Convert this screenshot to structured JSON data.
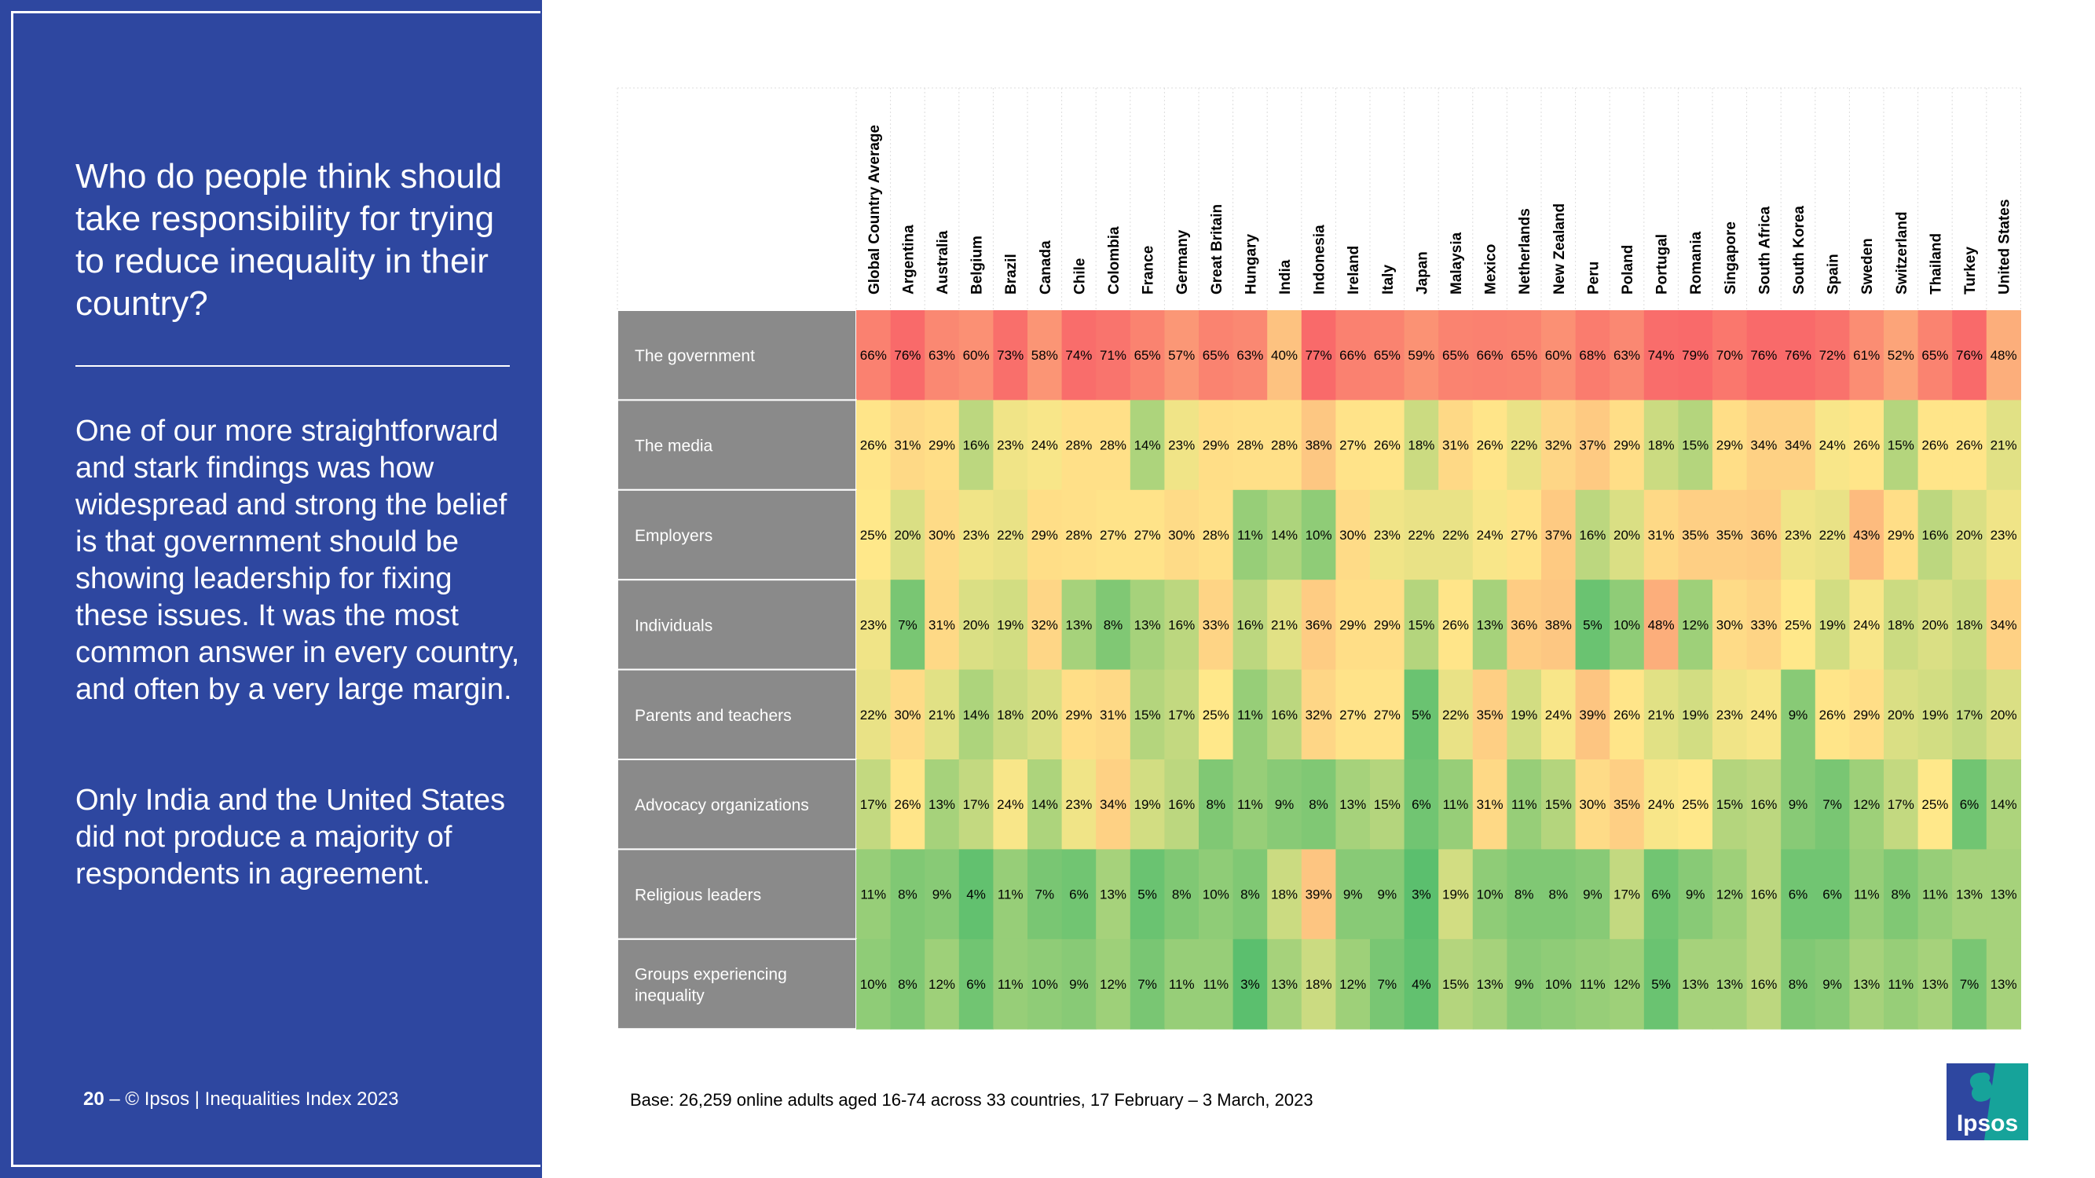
{
  "sidebar": {
    "question": "Who do people think should take responsibility for trying to reduce inequality in their country?",
    "paragraph1": "One of our more straightforward and stark findings was how widespread and strong the belief is that government should be showing leadership for fixing these issues. It was the most common answer in every country, and often by a very large margin.",
    "paragraph2": "Only India and the United States did not produce a majority of respondents in agreement.",
    "page_number": "20",
    "page_separator": " – ",
    "footer_text": "© Ipsos | Inequalities Index 2023"
  },
  "base_note": "Base: 26,259 online adults aged 16-74 across 33 countries, 17 February – 3 March, 2023",
  "logo": {
    "text": "Ipsos"
  },
  "colors": {
    "panel_blue": "#2e47a0",
    "label_gray": "#8a8a8a",
    "scale_low": "#5bbf6e",
    "scale_mid": "#ffe88a",
    "scale_high": "#f96a6a",
    "logo_teal": "#16a39a",
    "logo_blue": "#2e47a0"
  },
  "chart_data": {
    "type": "heatmap",
    "value_format": "percent",
    "columns": [
      "Global Country Average",
      "Argentina",
      "Australia",
      "Belgium",
      "Brazil",
      "Canada",
      "Chile",
      "Colombia",
      "France",
      "Germany",
      "Great Britain",
      "Hungary",
      "India",
      "Indonesia",
      "Ireland",
      "Italy",
      "Japan",
      "Malaysia",
      "Mexico",
      "Netherlands",
      "New Zealand",
      "Peru",
      "Poland",
      "Portugal",
      "Romania",
      "Singapore",
      "South Africa",
      "South Korea",
      "Spain",
      "Sweden",
      "Switzerland",
      "Thailand",
      "Turkey",
      "United States"
    ],
    "rows": [
      {
        "label": "The government",
        "values": [
          66,
          76,
          63,
          60,
          73,
          58,
          74,
          71,
          65,
          57,
          65,
          63,
          40,
          77,
          66,
          65,
          59,
          65,
          66,
          65,
          60,
          68,
          63,
          74,
          79,
          70,
          76,
          76,
          72,
          61,
          52,
          65,
          76,
          48
        ]
      },
      {
        "label": "The media",
        "values": [
          26,
          31,
          29,
          16,
          23,
          24,
          28,
          28,
          14,
          23,
          29,
          28,
          28,
          38,
          27,
          26,
          18,
          31,
          26,
          22,
          32,
          37,
          29,
          18,
          15,
          29,
          34,
          34,
          24,
          26,
          15,
          26,
          26,
          21
        ]
      },
      {
        "label": "Employers",
        "values": [
          25,
          20,
          30,
          23,
          22,
          29,
          28,
          27,
          27,
          30,
          28,
          11,
          14,
          10,
          30,
          23,
          22,
          22,
          24,
          27,
          37,
          16,
          20,
          31,
          35,
          35,
          36,
          23,
          22,
          43,
          29,
          16,
          20,
          23
        ]
      },
      {
        "label": "Individuals",
        "values": [
          23,
          7,
          31,
          20,
          19,
          32,
          13,
          8,
          13,
          16,
          33,
          16,
          21,
          36,
          29,
          29,
          15,
          26,
          13,
          36,
          38,
          5,
          10,
          48,
          12,
          30,
          33,
          25,
          19,
          24,
          18,
          20,
          18,
          34
        ]
      },
      {
        "label": "Parents and teachers",
        "values": [
          22,
          30,
          21,
          14,
          18,
          20,
          29,
          31,
          15,
          17,
          25,
          11,
          16,
          32,
          27,
          27,
          5,
          22,
          35,
          19,
          24,
          39,
          26,
          21,
          19,
          23,
          24,
          9,
          26,
          29,
          20,
          19,
          17,
          20
        ]
      },
      {
        "label": "Advocacy organizations",
        "values": [
          17,
          26,
          13,
          17,
          24,
          14,
          23,
          34,
          19,
          16,
          8,
          11,
          9,
          8,
          13,
          15,
          6,
          11,
          31,
          11,
          15,
          30,
          35,
          24,
          25,
          15,
          16,
          9,
          7,
          12,
          17,
          25,
          6,
          14
        ]
      },
      {
        "label": "Religious leaders",
        "values": [
          11,
          8,
          9,
          4,
          11,
          7,
          6,
          13,
          5,
          8,
          10,
          8,
          18,
          39,
          9,
          9,
          3,
          19,
          10,
          8,
          8,
          9,
          17,
          6,
          9,
          12,
          16,
          6,
          6,
          11,
          8,
          11,
          13,
          13
        ]
      },
      {
        "label": "Groups experiencing inequality",
        "label_lines": [
          "Groups experiencing",
          "inequality"
        ],
        "values": [
          10,
          8,
          12,
          6,
          11,
          10,
          9,
          12,
          7,
          11,
          11,
          3,
          13,
          18,
          12,
          7,
          4,
          15,
          13,
          9,
          10,
          11,
          12,
          5,
          13,
          13,
          16,
          8,
          9,
          13,
          11,
          13,
          7,
          13
        ]
      }
    ]
  }
}
